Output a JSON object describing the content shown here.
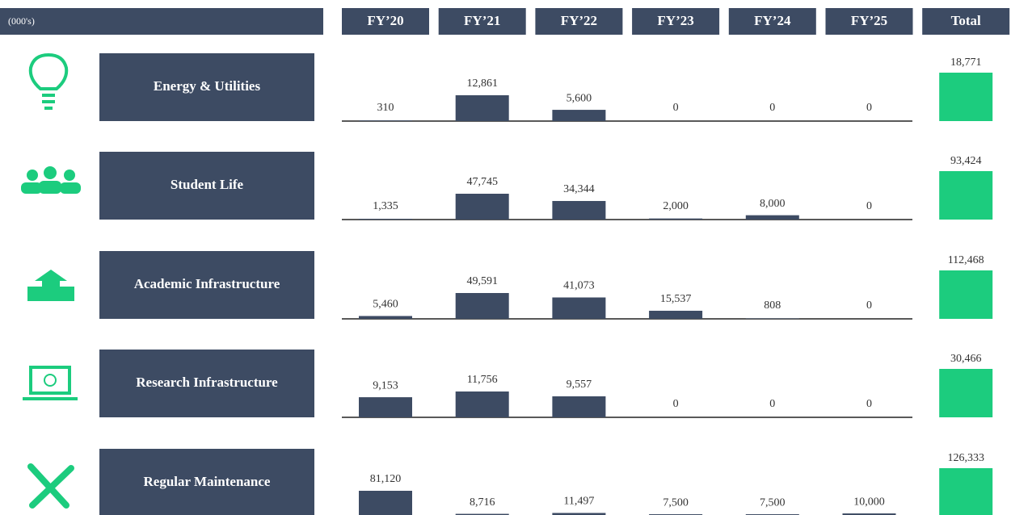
{
  "header": {
    "unit": "(000's)",
    "columns": [
      "FY’20",
      "FY’21",
      "FY’22",
      "FY’23",
      "FY’24",
      "FY’25",
      "Total"
    ]
  },
  "rows": [
    {
      "label": "Energy & Utilities",
      "values": [
        310,
        12861,
        5600,
        0,
        0,
        0
      ],
      "total": 18771,
      "value_labels": [
        "310",
        "12,861",
        "5,600",
        "0",
        "0",
        "0"
      ],
      "total_label": "18,771"
    },
    {
      "label": "Student Life",
      "values": [
        1335,
        47745,
        34344,
        2000,
        8000,
        0
      ],
      "total": 93424,
      "value_labels": [
        "1,335",
        "47,745",
        "34,344",
        "2,000",
        "8,000",
        "0"
      ],
      "total_label": "93,424"
    },
    {
      "label": "Academic Infrastructure",
      "values": [
        5460,
        49591,
        41073,
        15537,
        808,
        0
      ],
      "total": 112468,
      "value_labels": [
        "5,460",
        "49,591",
        "41,073",
        "15,537",
        "808",
        "0"
      ],
      "total_label": "112,468"
    },
    {
      "label": "Research Infrastructure",
      "values": [
        9153,
        11756,
        9557,
        0,
        0,
        0
      ],
      "total": 30466,
      "value_labels": [
        "9,153",
        "11,756",
        "9,557",
        "0",
        "0",
        "0"
      ],
      "total_label": "30,466"
    },
    {
      "label": "Regular Maintenance",
      "values": [
        81120,
        8716,
        11497,
        7500,
        7500,
        10000
      ],
      "total": 126333,
      "value_labels": [
        "81,120",
        "8,716",
        "11,497",
        "7,500",
        "7,500",
        "10,000"
      ],
      "total_label": "126,333"
    }
  ],
  "colors": {
    "dark": "#3d4b63",
    "total": "#1ccc7e"
  }
}
